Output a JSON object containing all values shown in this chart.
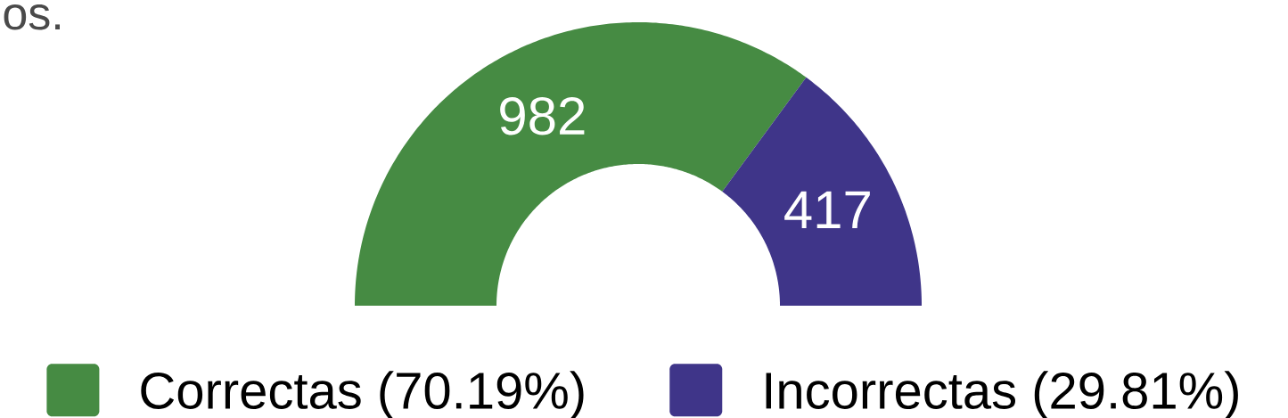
{
  "chart_data": {
    "type": "donut",
    "title": "os.",
    "categories": [
      "Correctas (70.19%)",
      "Incorrectas (29.81%)"
    ],
    "values": [
      982,
      417
    ],
    "colors": [
      "#468b43",
      "#3f3589"
    ],
    "data_labels": true,
    "legend": "bottom"
  }
}
